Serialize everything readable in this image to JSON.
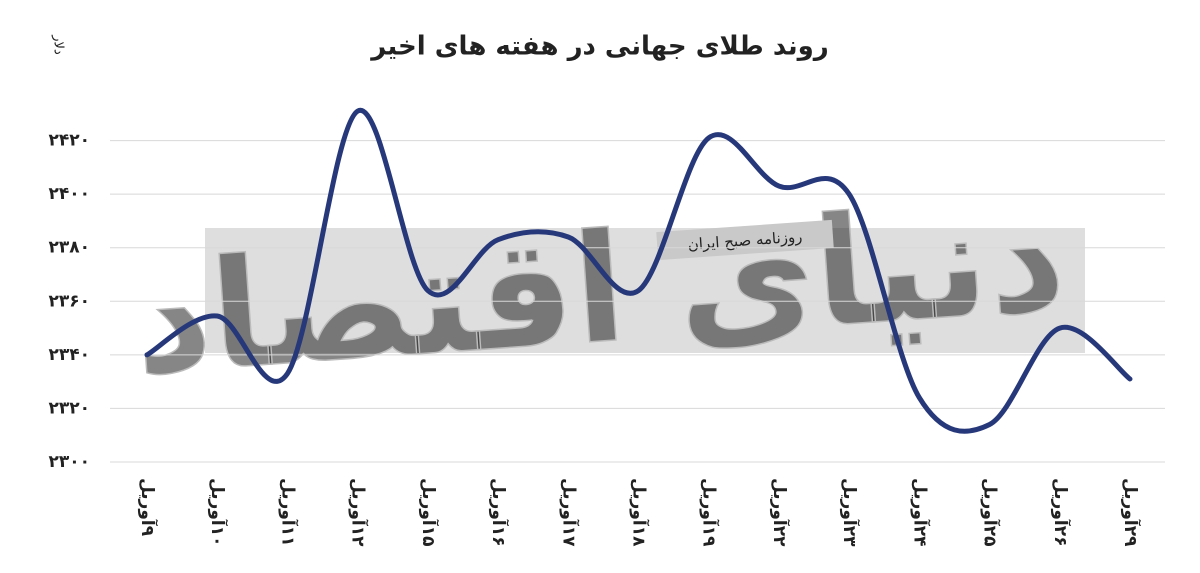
{
  "chart_data": {
    "type": "line",
    "title": "روند طلای جهانی در هفته های اخیر",
    "y_label": "دلار",
    "annotations": [
      "روزنامه صبح ایران",
      "دنیای اقتصاد"
    ],
    "categories": [
      "۹آوریل",
      "۱۰آوریل",
      "۱۱آوریل",
      "۱۲آوریل",
      "۱۵آوریل",
      "۱۶آوریل",
      "۱۷آوریل",
      "۱۸آوریل",
      "۱۹آوریل",
      "۲۲آوریل",
      "۲۳آوریل",
      "۲۴آوریل",
      "۲۵آوریل",
      "۲۶آوریل",
      "۲۹آوریل"
    ],
    "series": [
      {
        "color": "#26387a",
        "values": [
          2340,
          2354.5,
          2333,
          2431,
          2364,
          2383,
          2384,
          2364,
          2421,
          2403,
          2400,
          2324,
          2314,
          2350,
          2331
        ]
      }
    ],
    "ylim": [
      2300,
      2440
    ],
    "yticks": [
      {
        "value": 2300,
        "label": "۲۳۰۰"
      },
      {
        "value": 2320,
        "label": "۲۳۲۰"
      },
      {
        "value": 2340,
        "label": "۲۳۴۰"
      },
      {
        "value": 2360,
        "label": "۲۳۶۰"
      },
      {
        "value": 2380,
        "label": "۲۳۸۰"
      },
      {
        "value": 2400,
        "label": "۲۴۰۰"
      },
      {
        "value": 2420,
        "label": "۲۴۲۰"
      }
    ],
    "grid": true
  }
}
